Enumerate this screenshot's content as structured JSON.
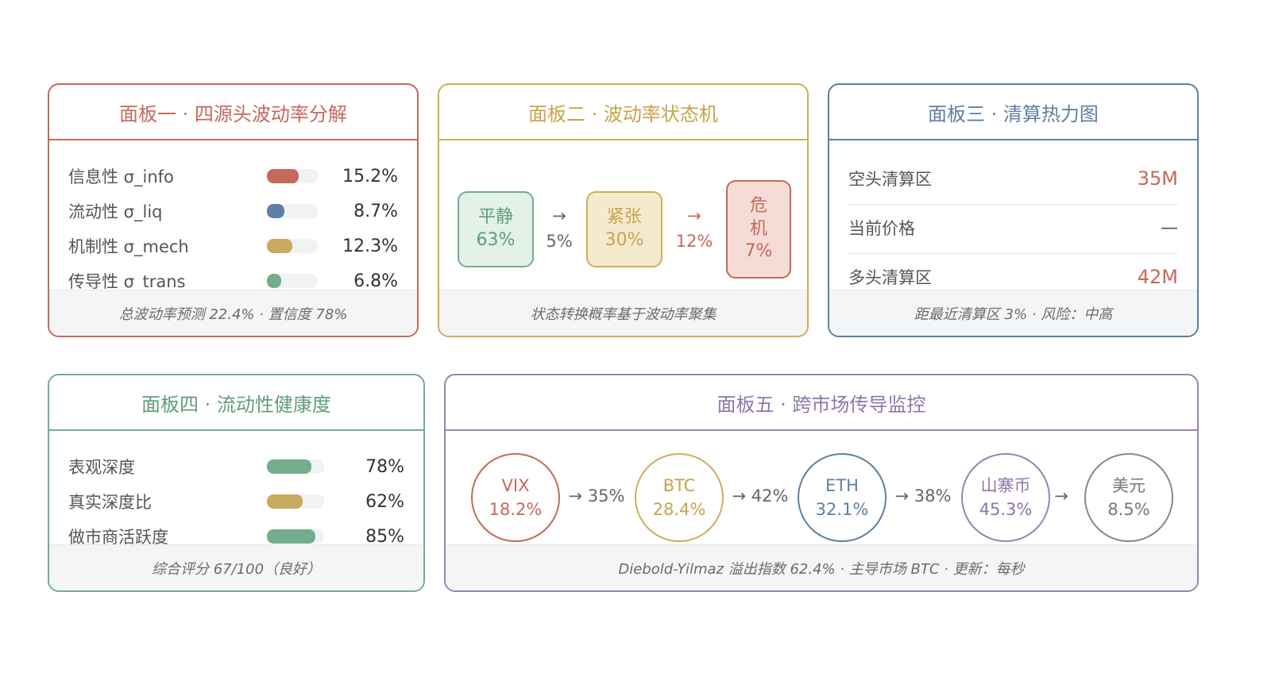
{
  "panel1": {
    "title": "面板一 · 四源头波动率分解",
    "rows": [
      {
        "label": "信息性 σ_info",
        "value": "15.2%",
        "level": 0.62,
        "color": "#c5695a"
      },
      {
        "label": "流动性 σ_liq",
        "value": "8.7%",
        "level": 0.35,
        "color": "#5e7fa5"
      },
      {
        "label": "机制性 σ_mech",
        "value": "12.3%",
        "level": 0.5,
        "color": "#c9ab5f"
      },
      {
        "label": "传导性 σ_trans",
        "value": "6.8%",
        "level": 0.28,
        "color": "#74ad8b"
      }
    ],
    "footer": "总波动率预测 22.4% · 置信度 78%"
  },
  "panel2": {
    "title": "面板二 · 波动率状态机",
    "states": [
      {
        "name": "平静",
        "pct": "63%"
      },
      {
        "name": "紧张",
        "pct": "30%"
      },
      {
        "name": "危\n机",
        "pct": "7%"
      }
    ],
    "transitions": [
      {
        "arrow": "→",
        "pct": "5%"
      },
      {
        "arrow": "→",
        "pct": "12%"
      }
    ],
    "footer": "状态转换概率基于波动率聚集"
  },
  "panel3": {
    "title": "面板三 · 清算热力图",
    "rows": [
      {
        "label": "空头清算区",
        "value": "35M"
      },
      {
        "label": "当前价格",
        "value": "—"
      },
      {
        "label": "多头清算区",
        "value": "42M"
      }
    ],
    "footer": "距最近清算区 3% · 风险：中高"
  },
  "panel4": {
    "title": "面板四 · 流动性健康度",
    "rows": [
      {
        "label": "表观深度",
        "value": "78%",
        "level": 0.78,
        "color": "#74ad8b"
      },
      {
        "label": "真实深度比",
        "value": "62%",
        "level": 0.62,
        "color": "#c9ab5f"
      },
      {
        "label": "做市商活跃度",
        "value": "85%",
        "level": 0.85,
        "color": "#74ad8b"
      }
    ],
    "footer": "综合评分 67/100（良好）"
  },
  "panel5": {
    "title": "面板五 · 跨市场传导监控",
    "nodes": [
      {
        "name": "VIX",
        "value": "18.2%"
      },
      {
        "name": "BTC",
        "value": "28.4%"
      },
      {
        "name": "ETH",
        "value": "32.1%"
      },
      {
        "name": "山寨币",
        "value": "45.3%"
      },
      {
        "name": "美元",
        "value": "8.5%"
      }
    ],
    "links": [
      "→ 35%",
      "→ 42%",
      "→ 38%",
      "→"
    ],
    "footer": "Diebold-Yilmaz 溢出指数 62.4% · 主导市场 BTC · 更新：每秒"
  }
}
